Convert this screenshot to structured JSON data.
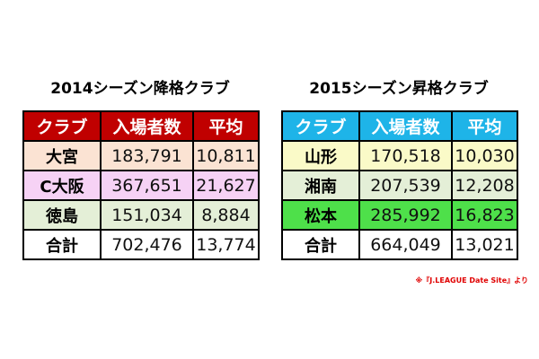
{
  "chart_data": [
    {
      "type": "table",
      "title": "2014シーズン降格クラブ",
      "columns": [
        "クラブ",
        "入場者数",
        "平均"
      ],
      "header_color": "#c00000",
      "rows": [
        {
          "club": "大宮",
          "attendance": "183,791",
          "average": "10,811",
          "color": "#fbe3d3"
        },
        {
          "club": "C大阪",
          "attendance": "367,651",
          "average": "21,627",
          "color": "#f6d2f5"
        },
        {
          "club": "徳島",
          "attendance": "151,034",
          "average": "8,884",
          "color": "#e4efd7"
        },
        {
          "club": "合計",
          "attendance": "702,476",
          "average": "13,774",
          "color": "#ffffff"
        }
      ]
    },
    {
      "type": "table",
      "title": "2015シーズン昇格クラブ",
      "columns": [
        "クラブ",
        "入場者数",
        "平均"
      ],
      "header_color": "#1eb4e8",
      "rows": [
        {
          "club": "山形",
          "attendance": "170,518",
          "average": "10,030",
          "color": "#fafac8"
        },
        {
          "club": "湘南",
          "attendance": "207,539",
          "average": "12,208",
          "color": "#e4efd7"
        },
        {
          "club": "松本",
          "attendance": "285,992",
          "average": "16,823",
          "color": "#4ee04a"
        },
        {
          "club": "合計",
          "attendance": "664,049",
          "average": "13,021",
          "color": "#ffffff"
        }
      ]
    }
  ],
  "source_note": "※『J.LEAGUE Date Site』より"
}
